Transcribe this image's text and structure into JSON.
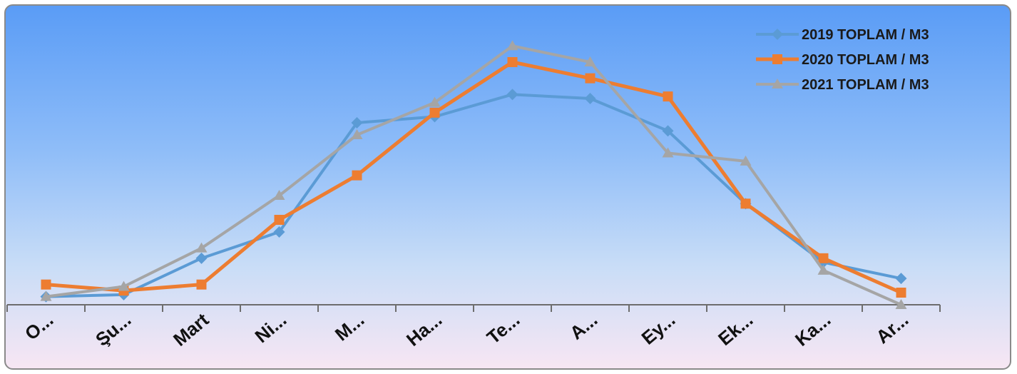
{
  "chart_data": {
    "type": "line",
    "categories": [
      "O...",
      "Şu...",
      "Mart",
      "Ni...",
      "M...",
      "Ha...",
      "Te...",
      "A...",
      "Ey...",
      "Ek...",
      "Ka...",
      "Ar..."
    ],
    "series": [
      {
        "name": "2019 TOPLAM / M3",
        "color": "#5b9bd5",
        "marker": "diamond",
        "values": [
          4,
          5,
          23,
          36,
          90,
          93,
          104,
          102,
          86,
          50,
          21,
          13
        ]
      },
      {
        "name": "2020 TOPLAM / M3",
        "color": "#ed7d31",
        "marker": "square",
        "values": [
          10,
          7,
          10,
          42,
          64,
          95,
          120,
          112,
          103,
          50,
          23,
          6
        ]
      },
      {
        "name": "2021 TOPLAM / M3",
        "color": "#a5a5a5",
        "marker": "triangle",
        "values": [
          4,
          9,
          28,
          54,
          84,
          100,
          128,
          120,
          75,
          71,
          17,
          0
        ]
      }
    ],
    "ylim": [
      0,
      150
    ],
    "grid": false,
    "legend_position": "top-right",
    "title": "",
    "xlabel": "",
    "ylabel": ""
  }
}
